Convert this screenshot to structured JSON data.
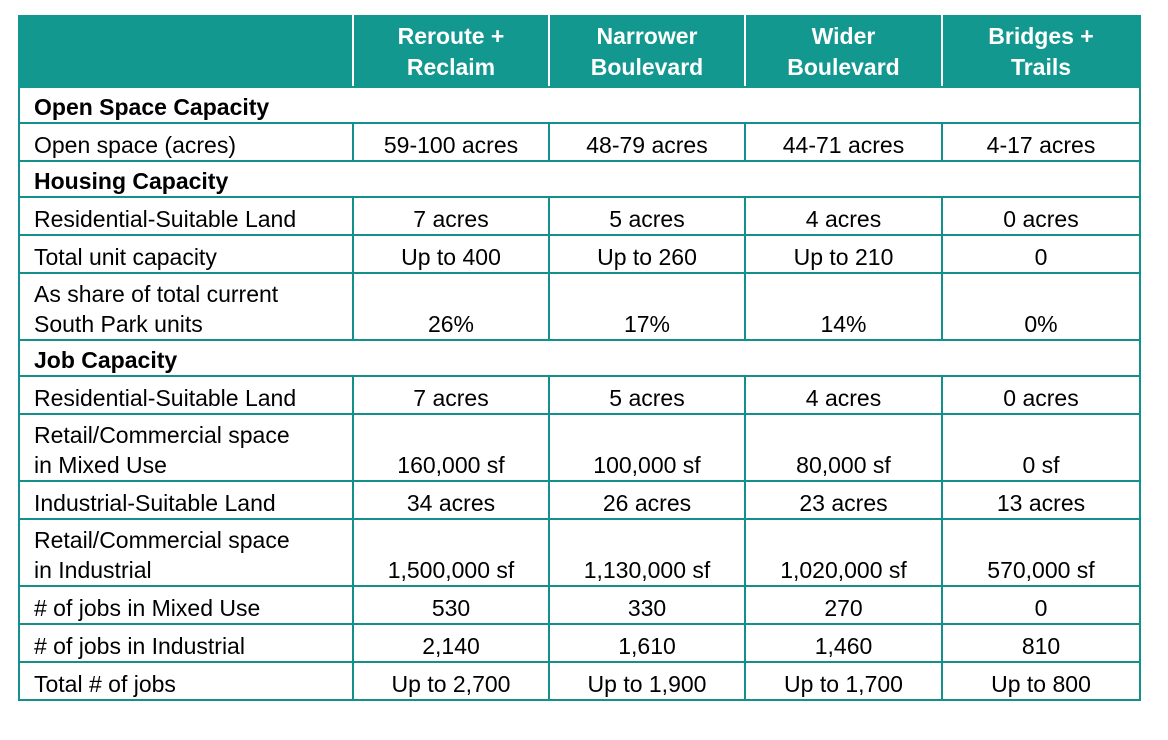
{
  "table": {
    "headers": [
      {
        "line1": "",
        "line2": ""
      },
      {
        "line1": "Reroute +",
        "line2": "Reclaim"
      },
      {
        "line1": "Narrower",
        "line2": "Boulevard"
      },
      {
        "line1": "Wider",
        "line2": "Boulevard"
      },
      {
        "line1": "Bridges +",
        "line2": "Trails"
      }
    ],
    "sections": {
      "open_space": "Open Space Capacity",
      "housing": "Housing Capacity",
      "jobs": "Job Capacity"
    },
    "rows": {
      "open_space_acres": {
        "label": "Open space (acres)",
        "values": [
          "59-100 acres",
          "48-79 acres",
          "44-71 acres",
          "4-17 acres"
        ]
      },
      "res_land_housing": {
        "label": "Residential-Suitable Land",
        "values": [
          "7 acres",
          "5 acres",
          "4 acres",
          "0 acres"
        ]
      },
      "total_unit_capacity": {
        "label": "Total unit capacity",
        "values": [
          "Up to 400",
          "Up to 260",
          "Up to 210",
          "0"
        ]
      },
      "share_units": {
        "label_line1": "As share of total current",
        "label_line2": "South Park units",
        "values": [
          "26%",
          "17%",
          "14%",
          "0%"
        ]
      },
      "res_land_jobs": {
        "label": "Residential-Suitable Land",
        "values": [
          "7 acres",
          "5 acres",
          "4 acres",
          "0 acres"
        ]
      },
      "retail_mixed": {
        "label_line1": "Retail/Commercial space",
        "label_line2": "in Mixed Use",
        "values": [
          "160,000 sf",
          "100,000 sf",
          "80,000 sf",
          "0 sf"
        ]
      },
      "industrial_land": {
        "label": "Industrial-Suitable Land",
        "values": [
          "34 acres",
          "26 acres",
          "23 acres",
          "13 acres"
        ]
      },
      "retail_industrial": {
        "label_line1": "Retail/Commercial space",
        "label_line2": "in Industrial",
        "values": [
          "1,500,000 sf",
          "1,130,000 sf",
          "1,020,000 sf",
          "570,000 sf"
        ]
      },
      "jobs_mixed": {
        "label": "# of jobs in Mixed Use",
        "values": [
          "530",
          "330",
          "270",
          "0"
        ]
      },
      "jobs_industrial": {
        "label": "# of jobs in Industrial",
        "values": [
          "2,140",
          "1,610",
          "1,460",
          "810"
        ]
      },
      "total_jobs": {
        "label": "Total # of jobs",
        "values": [
          "Up to 2,700",
          "Up to 1,900",
          "Up to 1,700",
          "Up to 800"
        ]
      }
    }
  },
  "colors": {
    "header_bg": "#139890",
    "border": "#13908b",
    "header_text": "#ffffff"
  }
}
